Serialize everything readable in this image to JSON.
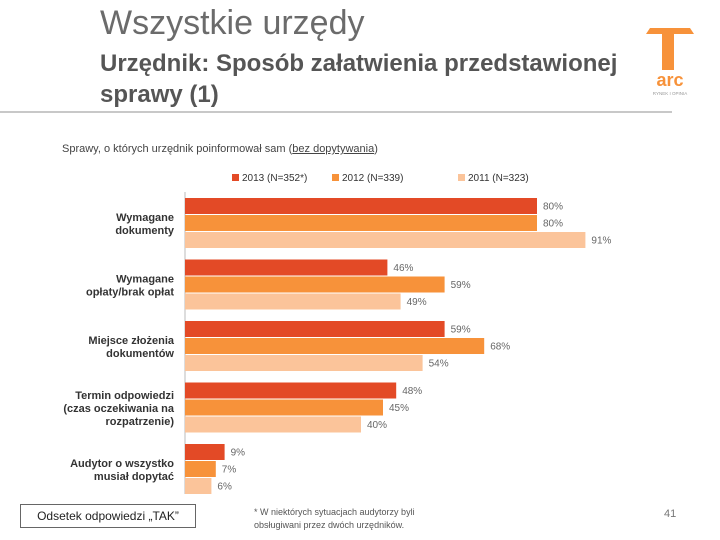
{
  "slide": {
    "title": "Wszystkie urzędy",
    "subtitle": "Urzędnik: Sposób załatwienia przedstawionej sprawy (1)",
    "logo_text": "arc",
    "logo_tagline": "RYNEK I OPINIA",
    "chart_caption_prefix": "Sprawy, o których urzędnik poinformował sam (",
    "chart_caption_underlined": "bez dopytywania",
    "chart_caption_suffix": ")",
    "note": "Odsetek odpowiedzi „TAK”",
    "footnote": "* W niektórych sytuacjach audytorzy byli obsługiwani przez dwóch urzędników.",
    "page_number": "41"
  },
  "chart_data": {
    "type": "bar",
    "orientation": "horizontal",
    "categories": [
      "Wymagane dokumenty",
      "Wymagane opłaty/brak opłat",
      "Miejsce złożenia dokumentów",
      "Termin odpowiedzi (czas oczekiwania na rozpatrzenie)",
      "Audytor o wszystko musiał dopytać"
    ],
    "category_lines": [
      [
        "Wymagane",
        "dokumenty"
      ],
      [
        "Wymagane",
        "opłaty/brak opłat"
      ],
      [
        "Miejsce złożenia",
        "dokumentów"
      ],
      [
        "Termin odpowiedzi",
        "(czas oczekiwania na",
        "rozpatrzenie)"
      ],
      [
        "Audytor o wszystko",
        "musiał dopytać"
      ]
    ],
    "series": [
      {
        "name": "2013 (N=352*)",
        "values": [
          80,
          46,
          59,
          48,
          9
        ],
        "labels": [
          "80%",
          "46%",
          "59%",
          "48%",
          "9%"
        ],
        "color": "#e34a26"
      },
      {
        "name": "2012 (N=339)",
        "values": [
          80,
          59,
          68,
          45,
          7
        ],
        "labels": [
          "80%",
          "59%",
          "68%",
          "45%",
          "7%"
        ],
        "color": "#f7923a"
      },
      {
        "name": "2011 (N=323)",
        "values": [
          91,
          49,
          54,
          40,
          6
        ],
        "labels": [
          "91%",
          "49%",
          "54%",
          "40%",
          "6%"
        ],
        "color": "#fbc49a"
      }
    ],
    "xlim": [
      0,
      100
    ],
    "legend_position": "top",
    "grid": false
  }
}
